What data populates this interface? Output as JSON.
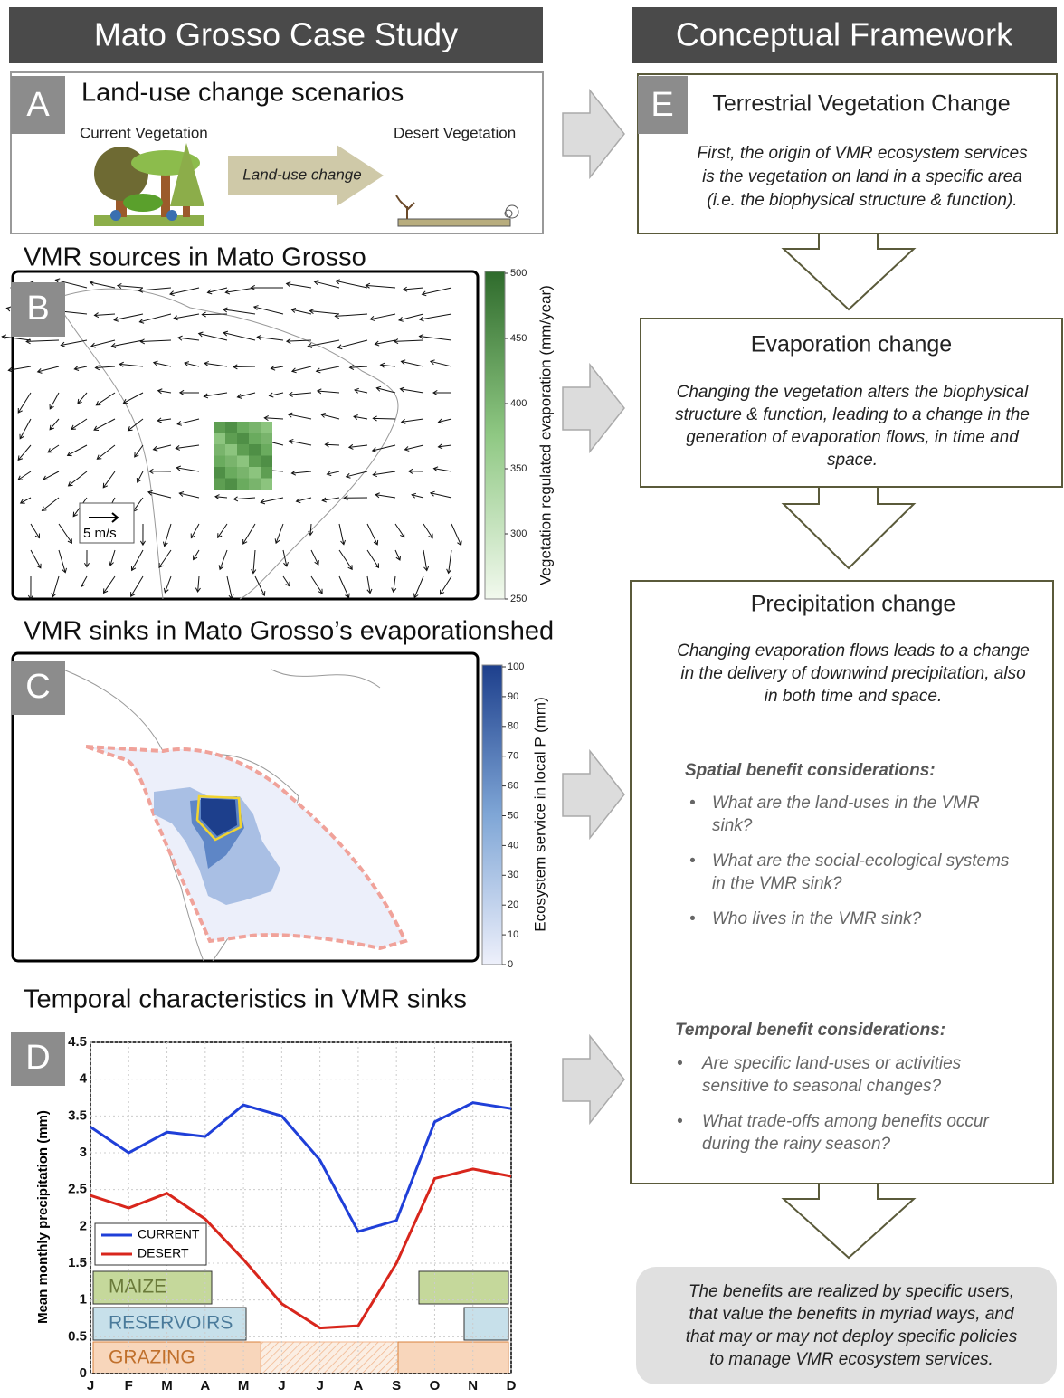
{
  "left_header": "Mato Grosso Case Study",
  "right_header": "Conceptual Framework",
  "panel_a": {
    "letter": "A",
    "title": "Land-use change scenarios",
    "current": "Current Vegetation",
    "desert": "Desert Vegetation",
    "arrow": "Land-use change"
  },
  "panel_b": {
    "letter": "B",
    "title": "VMR sources in Mato Grosso",
    "scale_label": "5 m/s",
    "colorbar_label": "Vegetation regulated evaporation (mm/year)",
    "colorbar_ticks": [
      250,
      300,
      350,
      400,
      450,
      500
    ]
  },
  "panel_c": {
    "letter": "C",
    "title": "VMR sinks in Mato Grosso’s evaporationshed",
    "colorbar_label": "Ecosystem service in local P (mm)",
    "colorbar_ticks": [
      0,
      10,
      20,
      30,
      40,
      50,
      60,
      70,
      80,
      90,
      100
    ]
  },
  "panel_d": {
    "letter": "D",
    "title": "Temporal characteristics in VMR sinks",
    "bands": [
      "MAIZE",
      "RESERVOIRS",
      "GRAZING"
    ]
  },
  "chart_data": {
    "type": "line",
    "y_label": "Mean monthly precipitation (mm)",
    "categories": [
      "J",
      "F",
      "M",
      "A",
      "M",
      "J",
      "J",
      "A",
      "S",
      "O",
      "N",
      "D"
    ],
    "series": [
      {
        "name": "CURRENT",
        "color": "#1f3fd8",
        "values": [
          3.35,
          3.0,
          3.28,
          3.22,
          3.65,
          3.5,
          2.9,
          1.93,
          2.08,
          3.42,
          3.68,
          3.6
        ]
      },
      {
        "name": "DESERT",
        "color": "#d8261c",
        "values": [
          2.42,
          2.25,
          2.45,
          2.1,
          1.55,
          0.95,
          0.62,
          0.65,
          1.5,
          2.65,
          2.78,
          2.68
        ]
      }
    ],
    "ylim": [
      0,
      4.5
    ],
    "yticks": [
      0,
      0.5,
      1,
      1.5,
      2,
      2.5,
      3,
      3.5,
      4,
      4.5
    ],
    "grid": true
  },
  "panel_e": {
    "letter": "E",
    "title": "Terrestrial Vegetation Change",
    "lines": [
      "First, the origin of VMR ecosystem services",
      "is the vegetation on land in a specific area",
      "(i.e. the biophysical structure & function)."
    ]
  },
  "evaporation": {
    "title": "Evaporation change",
    "lines": [
      "Changing the vegetation alters the biophysical",
      "structure & function, leading to a change in the",
      "generation of evaporation flows, in time and",
      "space."
    ]
  },
  "precipitation": {
    "title": "Precipitation change",
    "lines": [
      "Changing evaporation flows leads to a change",
      "in the delivery of downwind precipitation, also",
      "in both time and space."
    ],
    "spatial_heading": "Spatial  benefit considerations:",
    "spatial": [
      [
        "What are the land-uses in the VMR",
        "sink?"
      ],
      [
        "What are the social-ecological systems",
        "in the VMR sink?"
      ],
      [
        "Who lives in the VMR sink?"
      ]
    ],
    "temporal_heading": "Temporal  benefit considerations:",
    "temporal": [
      [
        "Are specific land-uses or activities",
        "sensitive to seasonal changes?"
      ],
      [
        "What trade-offs among benefits occur",
        "during the rainy season?"
      ]
    ]
  },
  "conclusion": [
    "The benefits are realized by specific users,",
    "that value the benefits in myriad ways, and",
    "that may or may not deploy specific policies",
    "to manage VMR ecosystem services."
  ]
}
